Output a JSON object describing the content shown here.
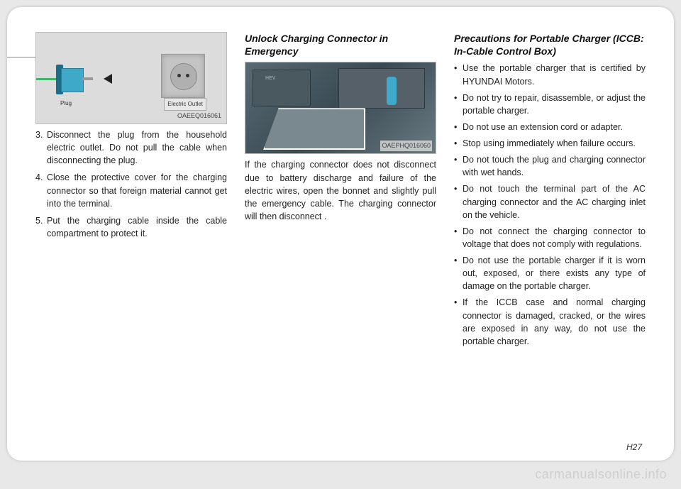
{
  "page_number": "H27",
  "watermark": "carmanualsonline.info",
  "col1": {
    "figure": {
      "code": "OAEEQ016061",
      "plug_label": "Plug",
      "outlet_label": "Electric Outlet"
    },
    "items": [
      {
        "num": "3.",
        "text": "Disconnect the plug from the household electric outlet. Do not pull the cable when disconnecting the plug."
      },
      {
        "num": "4.",
        "text": "Close the protective cover for the charging connector so that foreign material cannot get into the terminal."
      },
      {
        "num": "5.",
        "text": "Put the charging cable inside the cable compartment to protect it."
      }
    ]
  },
  "col2": {
    "title": "Unlock Charging Connector in Emergency",
    "figure": {
      "code": "OAEPHQ016060",
      "hev": "HEV"
    },
    "body": "If the charging connector does not disconnect due to battery discharge and failure of the electric wires, open the bonnet and slightly pull the emergency cable. The charging connector will then disconnect ."
  },
  "col3": {
    "title": "Precautions for Portable Charger (ICCB: In-Cable Control Box)",
    "bullets": [
      "Use the portable charger that is certified by HYUNDAI Motors.",
      "Do not try to repair, disassemble, or adjust the portable charger.",
      "Do not use an extension cord or adapter.",
      "Stop using immediately when failure occurs.",
      "Do not touch the plug and charging connector with wet hands.",
      "Do not touch the terminal part of the AC charging connector and the AC charging inlet on the vehicle.",
      "Do not connect the charging connector to voltage that does not comply with regulations.",
      "Do not use the portable charger if it is worn out, exposed, or there exists any type of damage on the portable charger.",
      "If the ICCB case and normal charging connector is damaged, cracked, or the wires are exposed in any way, do not use the portable charger."
    ]
  }
}
